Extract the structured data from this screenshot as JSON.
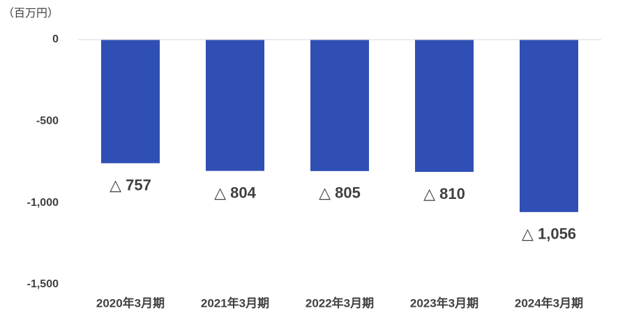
{
  "chart_data": {
    "type": "bar",
    "unit_label": "（百万円）",
    "categories": [
      "2020年3月期",
      "2021年3月期",
      "2022年3月期",
      "2023年3月期",
      "2024年3月期"
    ],
    "values": [
      -757,
      -804,
      -805,
      -810,
      -1056
    ],
    "value_labels": [
      "△ 757",
      "△ 804",
      "△ 805",
      "△ 810",
      "△ 1,056"
    ],
    "color": "#2f4fb5",
    "ylim": [
      -1500,
      0
    ],
    "yticks": [
      0,
      -500,
      {
        "value": -1000,
        "label": "-1,000"
      },
      {
        "value": -1500,
        "label": "-1,500"
      }
    ],
    "grid": false
  }
}
